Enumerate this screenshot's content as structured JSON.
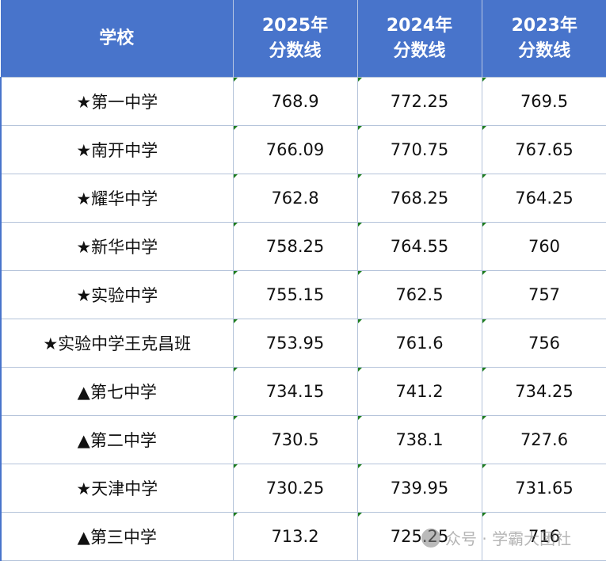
{
  "table": {
    "header_bg": "#4874CB",
    "headers": [
      {
        "line1": "学校",
        "line2": ""
      },
      {
        "line1": "2025年",
        "line2": "分数线"
      },
      {
        "line1": "2024年",
        "line2": "分数线"
      },
      {
        "line1": "2023年",
        "line2": "分数线"
      }
    ],
    "rows": [
      {
        "school": "★第一中学",
        "y2025": "768.9",
        "y2024": "772.25",
        "y2023": "769.5"
      },
      {
        "school": "★南开中学",
        "y2025": "766.09",
        "y2024": "770.75",
        "y2023": "767.65"
      },
      {
        "school": "★耀华中学",
        "y2025": "762.8",
        "y2024": "768.25",
        "y2023": "764.25"
      },
      {
        "school": "★新华中学",
        "y2025": "758.25",
        "y2024": "764.55",
        "y2023": "760"
      },
      {
        "school": "★实验中学",
        "y2025": "755.15",
        "y2024": "762.5",
        "y2023": "757"
      },
      {
        "school": "★实验中学王克昌班",
        "y2025": "753.95",
        "y2024": "761.6",
        "y2023": "756"
      },
      {
        "school": "▲第七中学",
        "y2025": "734.15",
        "y2024": "741.2",
        "y2023": "734.25"
      },
      {
        "school": "▲第二中学",
        "y2025": "730.5",
        "y2024": "738.1",
        "y2023": "727.6"
      },
      {
        "school": "★天津中学",
        "y2025": "730.25",
        "y2024": "739.95",
        "y2023": "731.65"
      },
      {
        "school": "▲第三中学",
        "y2025": "713.2",
        "y2024": "725.25",
        "y2023": "716"
      }
    ]
  },
  "watermark": {
    "icon": "wechat-official-account-icon",
    "text": "众号 · 学霸大团社"
  }
}
